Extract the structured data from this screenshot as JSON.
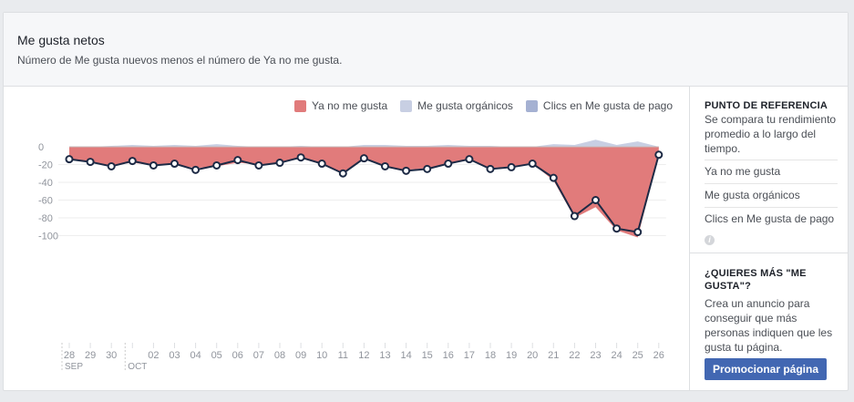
{
  "header": {
    "title": "Me gusta netos",
    "subtitle": "Número de Me gusta nuevos menos el número de Ya no me gusta."
  },
  "legend": [
    {
      "label": "Ya no me gusta",
      "color": "#e17b7b"
    },
    {
      "label": "Me gusta orgánicos",
      "color": "#c8cfe3"
    },
    {
      "label": "Clics en Me gusta de pago",
      "color": "#a5b1d2"
    }
  ],
  "chart_data": {
    "type": "area",
    "x": [
      "28",
      "29",
      "30",
      "01",
      "02",
      "03",
      "04",
      "05",
      "06",
      "07",
      "08",
      "09",
      "10",
      "11",
      "12",
      "13",
      "14",
      "15",
      "16",
      "17",
      "18",
      "19",
      "20",
      "21",
      "22",
      "23",
      "24",
      "25",
      "26"
    ],
    "x_tick_labels": [
      "28",
      "29",
      "30",
      "",
      "02",
      "03",
      "04",
      "05",
      "06",
      "07",
      "08",
      "09",
      "10",
      "11",
      "12",
      "13",
      "14",
      "15",
      "16",
      "17",
      "18",
      "19",
      "20",
      "21",
      "22",
      "23",
      "24",
      "25",
      "26"
    ],
    "month_labels": [
      {
        "label": "SEP",
        "at": "28"
      },
      {
        "label": "OCT",
        "at": "01"
      }
    ],
    "ylim": [
      -110,
      10
    ],
    "y_ticks": [
      0,
      -20,
      -40,
      -60,
      -80,
      -100
    ],
    "grid": true,
    "legend_position": "top-right",
    "series": [
      {
        "name": "Ya no me gusta",
        "values": [
          -14,
          -18,
          -21,
          -18,
          -21,
          -20,
          -24,
          -22,
          -18,
          -20,
          -18,
          -13,
          -20,
          -29,
          -13,
          -22,
          -26,
          -24,
          -19,
          -15,
          -24,
          -22,
          -19,
          -38,
          -80,
          -68,
          -94,
          -102,
          -10
        ]
      },
      {
        "name": "Me gusta orgánicos",
        "values": [
          0,
          0,
          1,
          2,
          1,
          2,
          1,
          3,
          1,
          0,
          0,
          1,
          0,
          0,
          2,
          2,
          1,
          1,
          2,
          1,
          1,
          0,
          0,
          3,
          2,
          8,
          2,
          6,
          0
        ]
      },
      {
        "name": "Clics en Me gusta de pago",
        "values": [
          0,
          0,
          0,
          0,
          0,
          0,
          0,
          0,
          0,
          0,
          0,
          0,
          0,
          0,
          0,
          0,
          0,
          0,
          0,
          0,
          0,
          0,
          0,
          0,
          0,
          0,
          0,
          0,
          0
        ]
      },
      {
        "name": "Me gusta netos",
        "values": [
          -14,
          -17,
          -22,
          -16,
          -21,
          -19,
          -26,
          -21,
          -15,
          -21,
          -18,
          -12,
          -19,
          -30,
          -13,
          -22,
          -27,
          -25,
          -19,
          -14,
          -25,
          -23,
          -19,
          -35,
          -78,
          -60,
          -92,
          -96,
          -9
        ]
      }
    ]
  },
  "sidebar": {
    "reference_heading": "PUNTO DE REFERENCIA",
    "reference_text": "Se compara tu rendimiento promedio a lo largo del tiempo.",
    "reference_items": [
      "Ya no me gusta",
      "Me gusta orgánicos",
      "Clics en Me gusta de pago"
    ],
    "promo_heading": "¿QUIERES MÁS \"ME GUSTA\"?",
    "promo_text": "Crea un anuncio para conseguir que más personas indiquen que les gusta tu página.",
    "promo_button": "Promocionar página"
  }
}
